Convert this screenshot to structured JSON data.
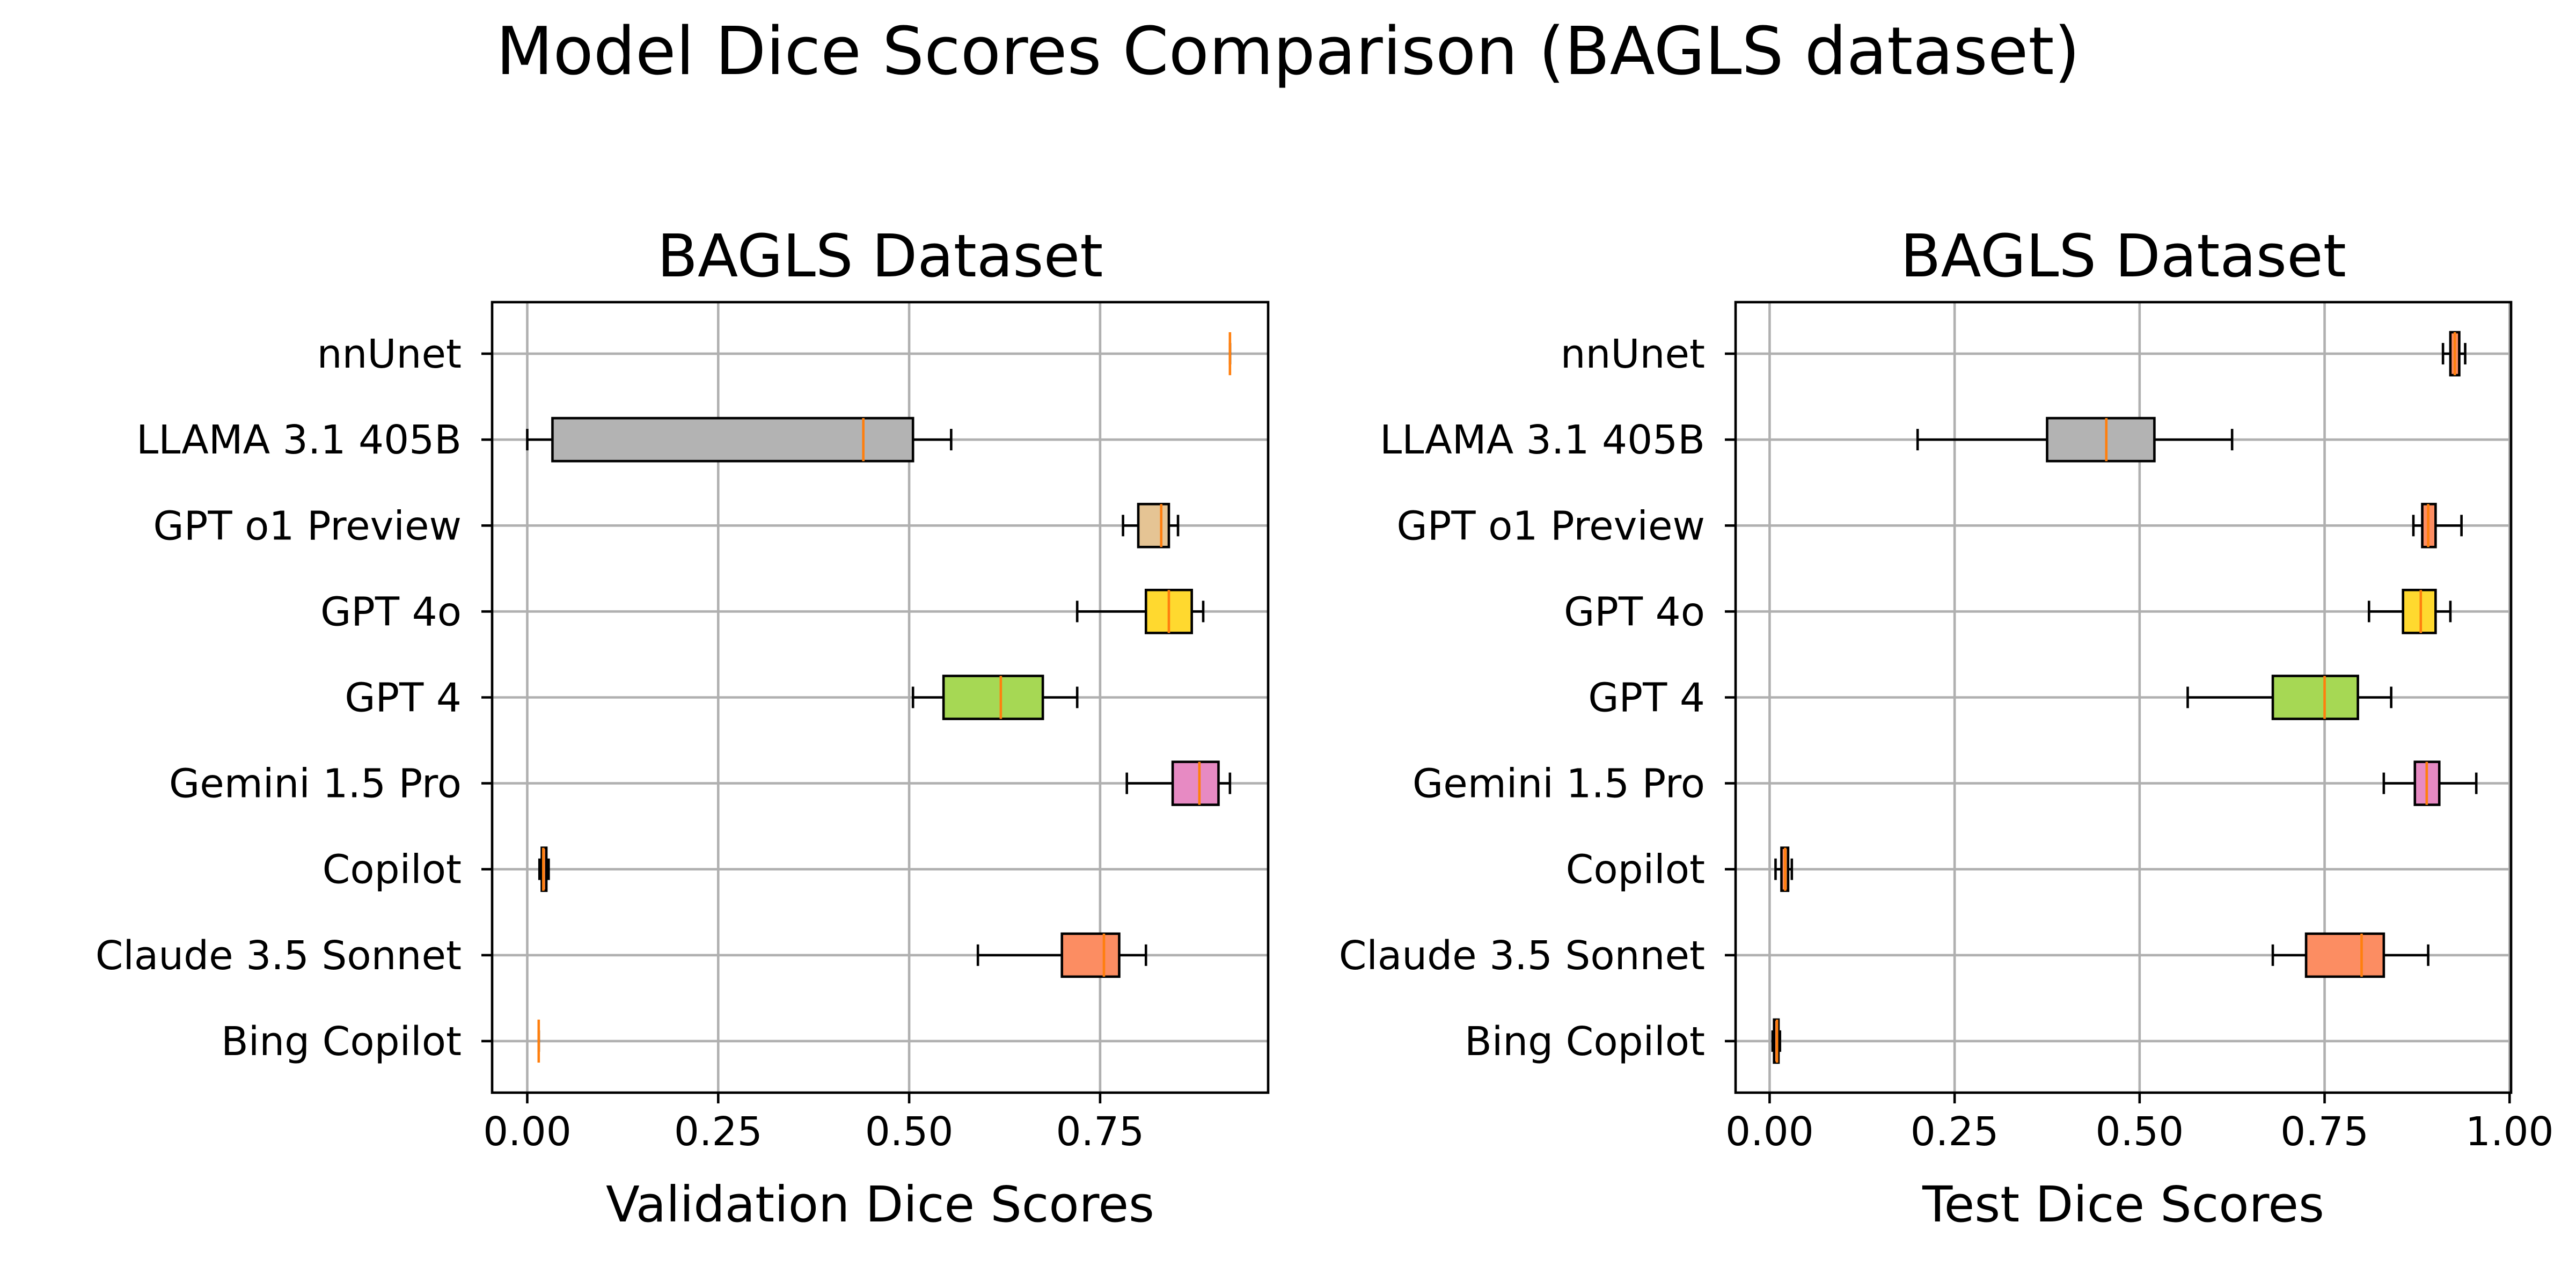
{
  "figure": {
    "suptitle": "Model Dice Scores Comparison (BAGLS dataset)"
  },
  "chart_data": [
    {
      "type": "boxplot",
      "orientation": "horizontal",
      "title": "BAGLS Dataset",
      "xlabel": "Validation Dice Scores",
      "ylabel": "",
      "xlim": [
        -0.046,
        0.97
      ],
      "xticks": [
        0.0,
        0.25,
        0.5,
        0.75
      ],
      "xtick_labels": [
        "0.00",
        "0.25",
        "0.50",
        "0.75"
      ],
      "grid": true,
      "categories": [
        "nnUnet",
        "LLAMA 3.1 405B",
        "GPT o1 Preview",
        "GPT 4o",
        "GPT 4",
        "Gemini 1.5 Pro",
        "Copilot",
        "Claude 3.5 Sonnet",
        "Bing Copilot"
      ],
      "boxes": [
        {
          "label": "nnUnet",
          "whislo": 0.92,
          "q1": 0.92,
          "med": 0.92,
          "q3": 0.92,
          "whishi": 0.92,
          "color": "#c0c0c0"
        },
        {
          "label": "LLAMA 3.1 405B",
          "whislo": 0.0,
          "q1": 0.033,
          "med": 0.44,
          "q3": 0.505,
          "whishi": 0.555,
          "color": "#b3b3b3"
        },
        {
          "label": "GPT o1 Preview",
          "whislo": 0.78,
          "q1": 0.8,
          "med": 0.83,
          "q3": 0.84,
          "whishi": 0.852,
          "color": "#e5c494"
        },
        {
          "label": "GPT 4o",
          "whislo": 0.72,
          "q1": 0.81,
          "med": 0.84,
          "q3": 0.87,
          "whishi": 0.885,
          "color": "#ffd92f"
        },
        {
          "label": "GPT 4",
          "whislo": 0.505,
          "q1": 0.545,
          "med": 0.62,
          "q3": 0.675,
          "whishi": 0.72,
          "color": "#a6d854"
        },
        {
          "label": "Gemini 1.5 Pro",
          "whislo": 0.785,
          "q1": 0.845,
          "med": 0.88,
          "q3": 0.905,
          "whishi": 0.92,
          "color": "#e78ac3"
        },
        {
          "label": "Copilot",
          "whislo": 0.016,
          "q1": 0.019,
          "med": 0.021,
          "q3": 0.025,
          "whishi": 0.028,
          "color": "#fc8d62"
        },
        {
          "label": "Claude 3.5 Sonnet",
          "whislo": 0.59,
          "q1": 0.7,
          "med": 0.755,
          "q3": 0.775,
          "whishi": 0.81,
          "color": "#fc8d62"
        },
        {
          "label": "Bing Copilot",
          "whislo": 0.015,
          "q1": 0.015,
          "med": 0.015,
          "q3": 0.015,
          "whishi": 0.015,
          "color": "#fc8d62"
        }
      ]
    },
    {
      "type": "boxplot",
      "orientation": "horizontal",
      "title": "BAGLS Dataset",
      "xlabel": "Test Dice Scores",
      "ylabel": "",
      "xlim": [
        -0.046,
        1.002
      ],
      "xticks": [
        0.0,
        0.25,
        0.5,
        0.75,
        1.0
      ],
      "xtick_labels": [
        "0.00",
        "0.25",
        "0.50",
        "0.75",
        "1.00"
      ],
      "grid": true,
      "categories": [
        "nnUnet",
        "LLAMA 3.1 405B",
        "GPT o1 Preview",
        "GPT 4o",
        "GPT 4",
        "Gemini 1.5 Pro",
        "Copilot",
        "Claude 3.5 Sonnet",
        "Bing Copilot"
      ],
      "boxes": [
        {
          "label": "nnUnet",
          "whislo": 0.91,
          "q1": 0.92,
          "med": 0.926,
          "q3": 0.932,
          "whishi": 0.94,
          "color": "#fc8d62"
        },
        {
          "label": "LLAMA 3.1 405B",
          "whislo": 0.2,
          "q1": 0.375,
          "med": 0.455,
          "q3": 0.52,
          "whishi": 0.625,
          "color": "#b3b3b3"
        },
        {
          "label": "GPT o1 Preview",
          "whislo": 0.87,
          "q1": 0.882,
          "med": 0.89,
          "q3": 0.9,
          "whishi": 0.935,
          "color": "#fc8d62"
        },
        {
          "label": "GPT 4o",
          "whislo": 0.81,
          "q1": 0.856,
          "med": 0.88,
          "q3": 0.9,
          "whishi": 0.92,
          "color": "#ffd92f"
        },
        {
          "label": "GPT 4",
          "whislo": 0.565,
          "q1": 0.68,
          "med": 0.75,
          "q3": 0.795,
          "whishi": 0.84,
          "color": "#a6d854"
        },
        {
          "label": "Gemini 1.5 Pro",
          "whislo": 0.83,
          "q1": 0.872,
          "med": 0.888,
          "q3": 0.905,
          "whishi": 0.955,
          "color": "#e78ac3"
        },
        {
          "label": "Copilot",
          "whislo": 0.008,
          "q1": 0.016,
          "med": 0.021,
          "q3": 0.025,
          "whishi": 0.03,
          "color": "#fc8d62"
        },
        {
          "label": "Claude 3.5 Sonnet",
          "whislo": 0.68,
          "q1": 0.725,
          "med": 0.8,
          "q3": 0.83,
          "whishi": 0.89,
          "color": "#fc8d62"
        },
        {
          "label": "Bing Copilot",
          "whislo": 0.004,
          "q1": 0.006,
          "med": 0.01,
          "q3": 0.012,
          "whishi": 0.014,
          "color": "#fc8d62"
        }
      ]
    }
  ]
}
